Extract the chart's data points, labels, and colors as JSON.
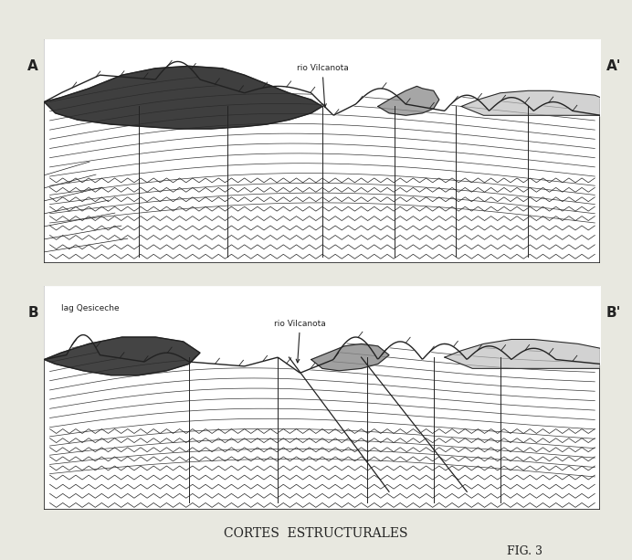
{
  "bg_color": "#e8e8e0",
  "panel_bg": "#ffffff",
  "line_color": "#222222",
  "dark_fill": "#2a2a2a",
  "gray_fill": "#888888",
  "light_gray": "#bbbbbb",
  "title": "CORTES  ESTRUCTURALES",
  "fig_label": "FIG. 3",
  "label_A": "A",
  "label_A_prime": "A'",
  "label_B": "B",
  "label_B_prime": "B'",
  "annotation_top": "rio Vilcanota",
  "annotation_bottom_left": "lag Qesiceche",
  "annotation_bottom_right": "rio Vilcanota",
  "title_fontsize": 10,
  "label_fontsize": 11
}
